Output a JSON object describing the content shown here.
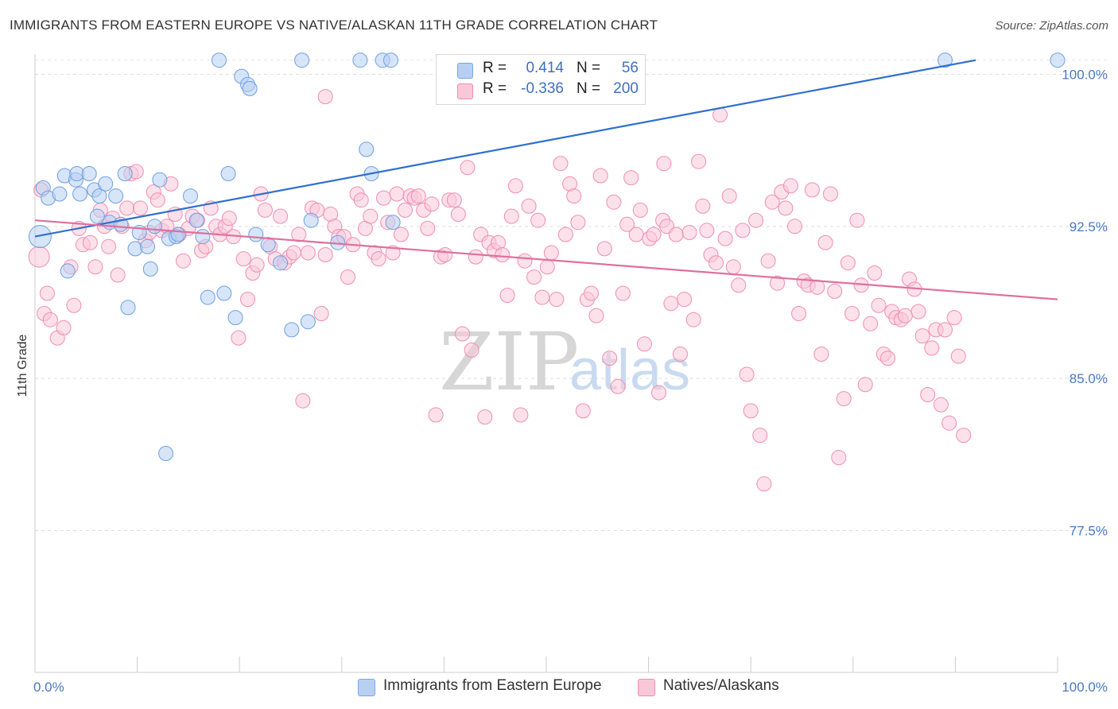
{
  "title": "IMMIGRANTS FROM EASTERN EUROPE VS NATIVE/ALASKAN 11TH GRADE CORRELATION CHART",
  "source": "Source: ZipAtlas.com",
  "watermark": {
    "zip": "ZIP",
    "atlas": "atlas"
  },
  "legend": {
    "rows": [
      {
        "r_label": "R =",
        "r_value": "0.414",
        "n_label": "N =",
        "n_value": "56",
        "color": "#7aa6e0",
        "fill": "#b7d0f2"
      },
      {
        "r_label": "R =",
        "r_value": "-0.336",
        "n_label": "N =",
        "n_value": "200",
        "color": "#f08db0",
        "fill": "#f9c8d8"
      }
    ]
  },
  "bottom_legend": [
    {
      "label": "Immigrants from Eastern Europe",
      "color": "#7aa6e0",
      "fill": "#b7d0f2"
    },
    {
      "label": "Natives/Alaskans",
      "color": "#f08db0",
      "fill": "#f9c8d8"
    }
  ],
  "chart_data": {
    "type": "scatter",
    "title": "IMMIGRANTS FROM EASTERN EUROPE VS NATIVE/ALASKAN 11TH GRADE CORRELATION CHART",
    "xlabel": "",
    "ylabel": "11th Grade",
    "xlim": [
      0,
      100
    ],
    "ylim": [
      70.5,
      101
    ],
    "x_tick_labels": [
      "0.0%",
      "100.0%"
    ],
    "y_ticks": [
      77.5,
      85.0,
      92.5,
      100.0
    ],
    "y_tick_labels": [
      "77.5%",
      "85.0%",
      "92.5%",
      "100.0%"
    ],
    "grid": true,
    "legend_position": "top-center",
    "series": [
      {
        "name": "Immigrants from Eastern Europe",
        "color": "#6f9fe0",
        "fill": "#b7d0f2",
        "line_color": "#2f6fcf",
        "trend": {
          "x": [
            0,
            92
          ],
          "y": [
            92.0,
            100.7
          ]
        },
        "points": [
          [
            0.5,
            92.0
          ],
          [
            0.8,
            94.4
          ],
          [
            1.3,
            93.9
          ],
          [
            2.4,
            94.1
          ],
          [
            2.9,
            95.0
          ],
          [
            3.2,
            90.3
          ],
          [
            4.0,
            94.8
          ],
          [
            4.1,
            95.1
          ],
          [
            4.4,
            94.1
          ],
          [
            5.3,
            95.1
          ],
          [
            5.8,
            94.3
          ],
          [
            6.1,
            93.0
          ],
          [
            6.3,
            94.0
          ],
          [
            6.9,
            94.6
          ],
          [
            7.3,
            92.7
          ],
          [
            7.9,
            94.0
          ],
          [
            8.4,
            92.6
          ],
          [
            8.8,
            95.1
          ],
          [
            9.1,
            88.5
          ],
          [
            9.8,
            91.4
          ],
          [
            10.2,
            92.2
          ],
          [
            11.0,
            91.5
          ],
          [
            11.3,
            90.4
          ],
          [
            11.7,
            92.5
          ],
          [
            12.2,
            94.8
          ],
          [
            12.8,
            81.3
          ],
          [
            13.1,
            91.9
          ],
          [
            13.8,
            92.0
          ],
          [
            14.0,
            92.1
          ],
          [
            15.2,
            94.0
          ],
          [
            15.8,
            92.8
          ],
          [
            16.4,
            92.0
          ],
          [
            16.9,
            89.0
          ],
          [
            18.0,
            100.7
          ],
          [
            18.5,
            89.2
          ],
          [
            18.9,
            95.1
          ],
          [
            19.6,
            88.0
          ],
          [
            20.2,
            99.9
          ],
          [
            20.8,
            99.5
          ],
          [
            21.0,
            99.3
          ],
          [
            21.6,
            92.1
          ],
          [
            22.8,
            91.6
          ],
          [
            24.0,
            90.7
          ],
          [
            25.1,
            87.4
          ],
          [
            26.1,
            100.7
          ],
          [
            26.7,
            87.8
          ],
          [
            27.0,
            92.8
          ],
          [
            29.6,
            91.7
          ],
          [
            31.8,
            100.7
          ],
          [
            32.4,
            96.3
          ],
          [
            32.9,
            95.1
          ],
          [
            34.0,
            100.7
          ],
          [
            34.8,
            100.7
          ],
          [
            35.0,
            92.7
          ],
          [
            89.0,
            100.7
          ],
          [
            100.0,
            100.7
          ]
        ]
      },
      {
        "name": "Natives/Alaskans",
        "color": "#f08db0",
        "fill": "#f9c8d8",
        "line_color": "#e0709c",
        "trend": {
          "x": [
            0,
            100
          ],
          "y": [
            92.8,
            88.9
          ]
        },
        "points": [
          [
            0.4,
            91.0
          ],
          [
            0.6,
            94.3
          ],
          [
            0.9,
            88.2
          ],
          [
            1.2,
            89.2
          ],
          [
            1.5,
            87.9
          ],
          [
            2.2,
            87.0
          ],
          [
            2.8,
            87.5
          ],
          [
            3.5,
            90.5
          ],
          [
            3.8,
            88.6
          ],
          [
            4.3,
            92.4
          ],
          [
            4.7,
            91.6
          ],
          [
            5.4,
            91.7
          ],
          [
            5.9,
            90.5
          ],
          [
            6.4,
            93.3
          ],
          [
            6.8,
            92.5
          ],
          [
            7.2,
            91.5
          ],
          [
            7.6,
            92.9
          ],
          [
            8.1,
            90.1
          ],
          [
            8.5,
            92.5
          ],
          [
            9.0,
            93.4
          ],
          [
            9.4,
            95.1
          ],
          [
            9.9,
            95.2
          ],
          [
            10.3,
            93.4
          ],
          [
            10.8,
            91.8
          ],
          [
            11.2,
            92.2
          ],
          [
            11.6,
            94.2
          ],
          [
            12.0,
            93.8
          ],
          [
            12.4,
            92.3
          ],
          [
            12.9,
            92.5
          ],
          [
            13.3,
            94.6
          ],
          [
            13.7,
            93.1
          ],
          [
            14.1,
            92.1
          ],
          [
            14.5,
            90.8
          ],
          [
            15.0,
            92.4
          ],
          [
            15.4,
            93.0
          ],
          [
            15.9,
            92.8
          ],
          [
            16.3,
            91.3
          ],
          [
            16.7,
            91.5
          ],
          [
            17.2,
            93.4
          ],
          [
            17.7,
            92.5
          ],
          [
            18.1,
            92.1
          ],
          [
            18.6,
            92.5
          ],
          [
            19.0,
            92.9
          ],
          [
            19.4,
            92.0
          ],
          [
            19.9,
            87.0
          ],
          [
            20.4,
            90.9
          ],
          [
            20.8,
            88.9
          ],
          [
            21.3,
            90.2
          ],
          [
            21.7,
            90.6
          ],
          [
            22.1,
            94.1
          ],
          [
            22.5,
            93.3
          ],
          [
            23.0,
            91.5
          ],
          [
            23.5,
            90.9
          ],
          [
            24.0,
            93.0
          ],
          [
            24.4,
            90.7
          ],
          [
            24.9,
            91.0
          ],
          [
            25.3,
            91.2
          ],
          [
            25.8,
            92.1
          ],
          [
            26.2,
            83.9
          ],
          [
            26.7,
            91.2
          ],
          [
            27.1,
            93.4
          ],
          [
            27.6,
            93.3
          ],
          [
            28.0,
            88.2
          ],
          [
            28.4,
            91.1
          ],
          [
            28.9,
            93.1
          ],
          [
            29.3,
            92.5
          ],
          [
            29.7,
            92.0
          ],
          [
            30.2,
            92.0
          ],
          [
            30.6,
            90.0
          ],
          [
            31.1,
            91.6
          ],
          [
            31.5,
            94.1
          ],
          [
            31.9,
            93.8
          ],
          [
            32.3,
            92.4
          ],
          [
            32.8,
            93.0
          ],
          [
            33.2,
            91.2
          ],
          [
            33.6,
            90.9
          ],
          [
            34.1,
            93.9
          ],
          [
            34.5,
            92.7
          ],
          [
            35.0,
            91.2
          ],
          [
            35.4,
            94.1
          ],
          [
            35.8,
            92.1
          ],
          [
            36.2,
            93.3
          ],
          [
            36.7,
            94.0
          ],
          [
            37.1,
            93.9
          ],
          [
            37.5,
            94.0
          ],
          [
            38.0,
            93.3
          ],
          [
            38.4,
            92.4
          ],
          [
            38.8,
            93.6
          ],
          [
            39.2,
            83.2
          ],
          [
            39.7,
            91.0
          ],
          [
            40.1,
            91.1
          ],
          [
            40.5,
            93.8
          ],
          [
            41.0,
            93.8
          ],
          [
            41.4,
            93.1
          ],
          [
            41.8,
            87.2
          ],
          [
            42.3,
            95.4
          ],
          [
            42.7,
            86.4
          ],
          [
            43.1,
            91.0
          ],
          [
            43.6,
            92.1
          ],
          [
            44.0,
            83.1
          ],
          [
            44.4,
            91.7
          ],
          [
            44.9,
            91.3
          ],
          [
            45.3,
            91.7
          ],
          [
            45.7,
            91.1
          ],
          [
            46.2,
            89.1
          ],
          [
            46.6,
            93.0
          ],
          [
            47.0,
            94.5
          ],
          [
            47.5,
            83.2
          ],
          [
            47.9,
            90.8
          ],
          [
            48.3,
            93.5
          ],
          [
            48.8,
            90.0
          ],
          [
            49.2,
            92.8
          ],
          [
            49.6,
            89.0
          ],
          [
            50.1,
            90.5
          ],
          [
            50.5,
            91.2
          ],
          [
            51.0,
            88.9
          ],
          [
            51.4,
            95.6
          ],
          [
            51.9,
            92.1
          ],
          [
            52.3,
            94.6
          ],
          [
            52.7,
            94.0
          ],
          [
            53.1,
            92.7
          ],
          [
            53.6,
            83.4
          ],
          [
            54.0,
            88.9
          ],
          [
            54.4,
            89.2
          ],
          [
            54.9,
            88.1
          ],
          [
            55.3,
            95.0
          ],
          [
            55.7,
            91.4
          ],
          [
            56.2,
            86.0
          ],
          [
            56.6,
            93.7
          ],
          [
            57.0,
            84.6
          ],
          [
            57.5,
            89.2
          ],
          [
            57.9,
            92.6
          ],
          [
            58.3,
            94.9
          ],
          [
            58.8,
            92.1
          ],
          [
            59.2,
            93.3
          ],
          [
            59.6,
            86.7
          ],
          [
            60.1,
            91.9
          ],
          [
            60.5,
            92.1
          ],
          [
            61.0,
            84.3
          ],
          [
            61.4,
            92.8
          ],
          [
            61.8,
            92.5
          ],
          [
            62.2,
            88.7
          ],
          [
            62.7,
            92.1
          ],
          [
            63.1,
            86.2
          ],
          [
            63.5,
            88.9
          ],
          [
            64.0,
            92.2
          ],
          [
            64.4,
            87.9
          ],
          [
            64.9,
            95.7
          ],
          [
            65.3,
            93.5
          ],
          [
            65.7,
            92.3
          ],
          [
            66.1,
            91.1
          ],
          [
            66.6,
            90.7
          ],
          [
            67.0,
            98.0
          ],
          [
            67.5,
            91.9
          ],
          [
            67.9,
            94.0
          ],
          [
            68.3,
            90.5
          ],
          [
            68.8,
            89.6
          ],
          [
            69.2,
            92.3
          ],
          [
            69.6,
            85.2
          ],
          [
            70.0,
            83.4
          ],
          [
            70.5,
            92.8
          ],
          [
            70.9,
            82.2
          ],
          [
            71.3,
            79.8
          ],
          [
            71.7,
            90.8
          ],
          [
            72.1,
            93.7
          ],
          [
            72.6,
            89.7
          ],
          [
            73.0,
            94.2
          ],
          [
            73.4,
            93.4
          ],
          [
            73.9,
            94.5
          ],
          [
            74.3,
            92.5
          ],
          [
            74.7,
            88.2
          ],
          [
            75.2,
            89.8
          ],
          [
            75.6,
            89.6
          ],
          [
            76.0,
            94.3
          ],
          [
            76.5,
            89.5
          ],
          [
            76.9,
            86.2
          ],
          [
            77.3,
            91.7
          ],
          [
            77.8,
            94.1
          ],
          [
            78.2,
            89.3
          ],
          [
            78.6,
            81.1
          ],
          [
            79.1,
            84.0
          ],
          [
            79.5,
            90.7
          ],
          [
            79.9,
            88.2
          ],
          [
            80.4,
            92.8
          ],
          [
            80.8,
            89.6
          ],
          [
            81.2,
            84.7
          ],
          [
            81.7,
            87.7
          ],
          [
            82.1,
            90.2
          ],
          [
            82.5,
            88.6
          ],
          [
            83.0,
            86.2
          ],
          [
            83.4,
            86.0
          ],
          [
            83.8,
            88.3
          ],
          [
            84.2,
            88.0
          ],
          [
            84.7,
            87.9
          ],
          [
            85.1,
            88.1
          ],
          [
            85.5,
            89.9
          ],
          [
            86.0,
            89.4
          ],
          [
            86.4,
            88.3
          ],
          [
            86.8,
            87.1
          ],
          [
            87.3,
            84.2
          ],
          [
            87.7,
            86.5
          ],
          [
            88.1,
            87.4
          ],
          [
            88.6,
            83.7
          ],
          [
            89.0,
            87.4
          ],
          [
            89.4,
            82.8
          ],
          [
            89.9,
            88.0
          ],
          [
            90.3,
            86.1
          ],
          [
            90.8,
            82.2
          ],
          [
            61.5,
            95.6
          ],
          [
            28.4,
            98.9
          ]
        ]
      }
    ]
  }
}
